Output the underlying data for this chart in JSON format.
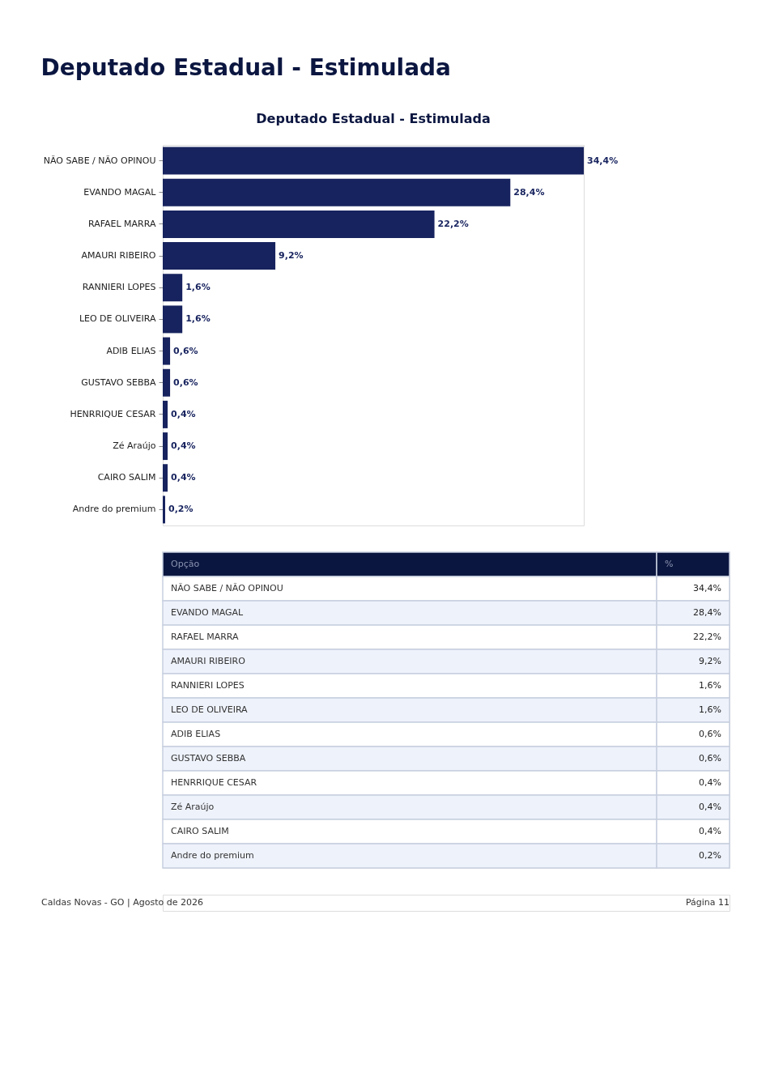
{
  "chart_data": {
    "type": "bar",
    "orientation": "horizontal",
    "title": "Deputado Estadual - Estimulada",
    "categories": [
      "NÃO SABE / NÃO OPINOU",
      "EVANDO MAGAL",
      "RAFAEL MARRA",
      "AMAURI RIBEIRO",
      "RANNIERI LOPES",
      "LEO DE OLIVEIRA",
      "ADIB ELIAS",
      "GUSTAVO SEBBA",
      "HENRRIQUE CESAR",
      "Zé Araújo",
      "CAIRO SALIM",
      "Andre do premium"
    ],
    "values": [
      34.4,
      28.4,
      22.2,
      9.2,
      1.6,
      1.6,
      0.6,
      0.6,
      0.4,
      0.4,
      0.4,
      0.2
    ],
    "value_labels": [
      "34,4%",
      "28,4%",
      "22,2%",
      "9,2%",
      "1,6%",
      "1,6%",
      "0,6%",
      "0,6%",
      "0,4%",
      "0,4%",
      "0,4%",
      "0,2%"
    ],
    "color": "#17235e",
    "tick_labels": "y",
    "grid": false,
    "legend": false,
    "annotations": [
      "Deputado Estadual - Estimulada",
      "Opção",
      "%",
      "Caldas Novas - GO | Agosto de 2026",
      "Página 11"
    ]
  }
}
